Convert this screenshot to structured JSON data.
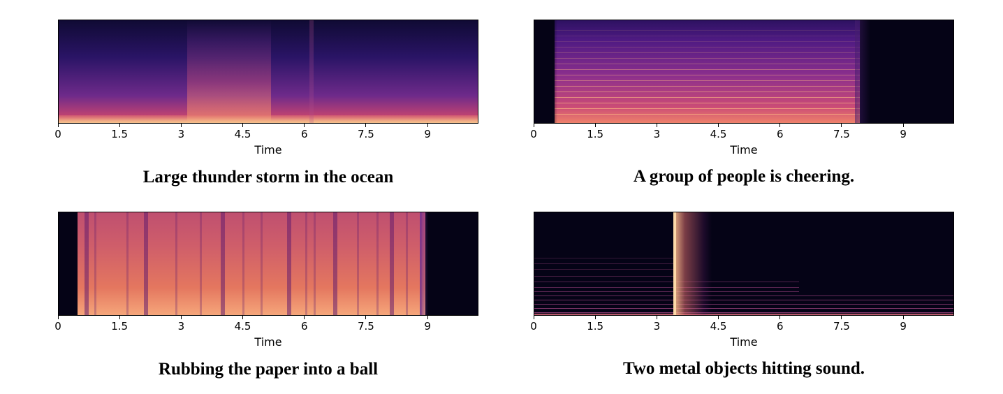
{
  "chart_data": [
    {
      "type": "heatmap",
      "title": "Large thunder storm in the ocean",
      "xlabel": "Time",
      "ylabel": "",
      "x_ticks": [
        "0",
        "1.5",
        "3",
        "4.5",
        "6",
        "7.5",
        "9"
      ],
      "x_tick_values": [
        0,
        1.5,
        3,
        4.5,
        6,
        7.5,
        9
      ],
      "xlim": [
        0,
        10.24
      ],
      "colormap": "magma"
    },
    {
      "type": "heatmap",
      "title": "A group of people is cheering.",
      "xlabel": "Time",
      "ylabel": "",
      "x_ticks": [
        "0",
        "1.5",
        "3",
        "4.5",
        "6",
        "7.5",
        "9"
      ],
      "x_tick_values": [
        0,
        1.5,
        3,
        4.5,
        6,
        7.5,
        9
      ],
      "xlim": [
        0,
        10.24
      ],
      "colormap": "magma"
    },
    {
      "type": "heatmap",
      "title": "Rubbing the paper into a ball",
      "xlabel": "Time",
      "ylabel": "",
      "x_ticks": [
        "0",
        "1.5",
        "3",
        "4.5",
        "6",
        "7.5",
        "9"
      ],
      "x_tick_values": [
        0,
        1.5,
        3,
        4.5,
        6,
        7.5,
        9
      ],
      "xlim": [
        0,
        10.24
      ],
      "colormap": "magma"
    },
    {
      "type": "heatmap",
      "title": "Two metal objects hitting sound.",
      "xlabel": "Time",
      "ylabel": "",
      "x_ticks": [
        "0",
        "1.5",
        "3",
        "4.5",
        "6",
        "7.5",
        "9"
      ],
      "x_tick_values": [
        0,
        1.5,
        3,
        4.5,
        6,
        7.5,
        9
      ],
      "xlim": [
        0,
        10.24
      ],
      "colormap": "magma"
    }
  ]
}
